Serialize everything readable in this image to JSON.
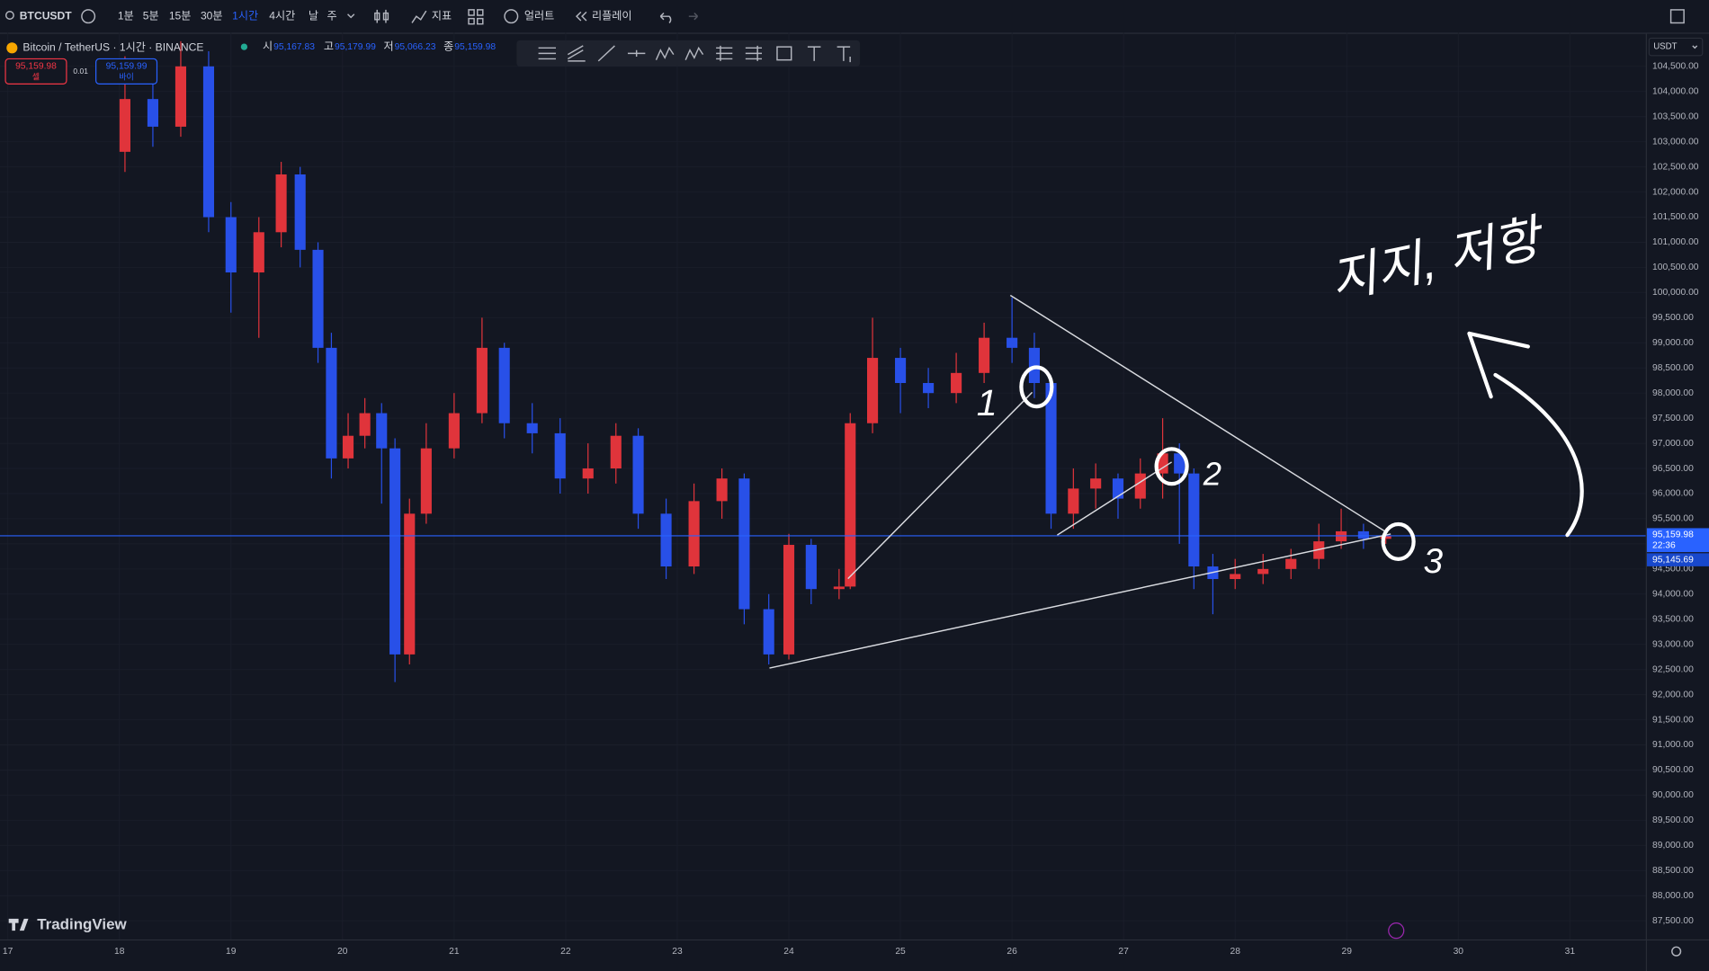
{
  "toolbar": {
    "symbol": "BTCUSDT",
    "intervals": [
      "1분",
      "5분",
      "15분",
      "30분",
      "1시간",
      "4시간",
      "날",
      "주"
    ],
    "indicators": "지표",
    "alert": "얼러트",
    "replay": "리플레이"
  },
  "legend": {
    "title": "Bitcoin / TetherUS · 1시간 · BINANCE",
    "open_label": "시",
    "open": "95,167.83",
    "high_label": "고",
    "high": "95,179.99",
    "low_label": "저",
    "low": "95,066.23",
    "close_label": "종",
    "close": "95,159.98"
  },
  "trade": {
    "sell_price": "95,159.98",
    "sell": "셀",
    "spread": "0.01",
    "buy_price": "95,159.99",
    "buy": "바이"
  },
  "currency": "USDT",
  "brand": "TradingView",
  "price_tags": {
    "countdown": "22:36",
    "second": "95,145.69"
  },
  "annotations": {
    "text": "지지, 저항",
    "mark_1": "1",
    "mark_2": "2",
    "mark_3": "3"
  },
  "chart_data": {
    "type": "candlestick",
    "up_color": "#e0343b",
    "down_color": "#2850e8",
    "last_price": {
      "value": 95159.98,
      "label": "95,159.98"
    },
    "last_price_color": "#2962ff",
    "grid": true,
    "xlim": [
      16.93,
      31.68
    ],
    "xticks": [
      17,
      18,
      19,
      20,
      21,
      22,
      23,
      24,
      25,
      26,
      27,
      28,
      29,
      30,
      31
    ],
    "ylim": [
      87130,
      105170
    ],
    "yticks": [
      {
        "value": 87500,
        "label": "87,500.00"
      },
      {
        "value": 88000,
        "label": "88,000.00"
      },
      {
        "value": 88500,
        "label": "88,500.00"
      },
      {
        "value": 89000,
        "label": "89,000.00"
      },
      {
        "value": 89500,
        "label": "89,500.00"
      },
      {
        "value": 90000,
        "label": "90,000.00"
      },
      {
        "value": 90500,
        "label": "90,500.00"
      },
      {
        "value": 91000,
        "label": "91,000.00"
      },
      {
        "value": 91500,
        "label": "91,500.00"
      },
      {
        "value": 92000,
        "label": "92,000.00"
      },
      {
        "value": 92500,
        "label": "92,500.00"
      },
      {
        "value": 93000,
        "label": "93,000.00"
      },
      {
        "value": 93500,
        "label": "93,500.00"
      },
      {
        "value": 94000,
        "label": "94,000.00"
      },
      {
        "value": 94500,
        "label": "94,500.00"
      },
      {
        "value": 95000,
        "label": "95,000.00"
      },
      {
        "value": 95500,
        "label": "95,500.00"
      },
      {
        "value": 96000,
        "label": "96,000.00"
      },
      {
        "value": 96500,
        "label": "96,500.00"
      },
      {
        "value": 97000,
        "label": "97,000.00"
      },
      {
        "value": 97500,
        "label": "97,500.00"
      },
      {
        "value": 98000,
        "label": "98,000.00"
      },
      {
        "value": 98500,
        "label": "98,500.00"
      },
      {
        "value": 99000,
        "label": "99,000.00"
      },
      {
        "value": 99500,
        "label": "99,500.00"
      },
      {
        "value": 100000,
        "label": "100,000.00"
      },
      {
        "value": 100500,
        "label": "100,500.00"
      },
      {
        "value": 101000,
        "label": "101,000.00"
      },
      {
        "value": 101500,
        "label": "101,500.00"
      },
      {
        "value": 102000,
        "label": "102,000.00"
      },
      {
        "value": 102500,
        "label": "102,500.00"
      },
      {
        "value": 103000,
        "label": "103,000.00"
      },
      {
        "value": 103500,
        "label": "103,500.00"
      },
      {
        "value": 104000,
        "label": "104,000.00"
      },
      {
        "value": 104500,
        "label": "104,500.00"
      }
    ],
    "x": [
      18.05,
      18.3,
      18.55,
      18.8,
      19.0,
      19.25,
      19.45,
      19.62,
      19.78,
      19.9,
      20.05,
      20.2,
      20.35,
      20.47,
      20.6,
      20.75,
      21.0,
      21.25,
      21.45,
      21.7,
      21.95,
      22.2,
      22.45,
      22.65,
      22.9,
      23.15,
      23.4,
      23.6,
      23.82,
      24.0,
      24.2,
      24.45,
      24.55,
      24.75,
      25.0,
      25.25,
      25.5,
      25.75,
      26.0,
      26.2,
      26.35,
      26.55,
      26.75,
      26.95,
      27.15,
      27.35,
      27.5,
      27.63,
      27.8,
      28.0,
      28.25,
      28.5,
      28.75,
      28.95,
      29.15,
      29.35
    ],
    "open": [
      102800,
      103850,
      103300,
      104500,
      101500,
      100400,
      101200,
      102350,
      100850,
      98900,
      96700,
      97150,
      97600,
      96900,
      92800,
      95600,
      96900,
      97600,
      98900,
      97400,
      97200,
      96300,
      96500,
      97150,
      95600,
      94550,
      95850,
      96300,
      93700,
      92800,
      94980,
      94100,
      94150,
      97400,
      98700,
      98200,
      98000,
      98400,
      99100,
      98900,
      98200,
      95600,
      96100,
      96300,
      95900,
      96400,
      96800,
      96400,
      94550,
      94300,
      94400,
      94500,
      94700,
      95050,
      95250,
      95100
    ],
    "high": [
      104700,
      104200,
      105000,
      104800,
      101800,
      101500,
      102600,
      102500,
      101000,
      99200,
      97600,
      97900,
      97800,
      97100,
      95900,
      97400,
      98000,
      99500,
      99000,
      97800,
      97500,
      97000,
      97400,
      97300,
      95900,
      96200,
      96500,
      96400,
      94000,
      95200,
      95100,
      94500,
      97600,
      99500,
      98900,
      98500,
      98800,
      99400,
      99900,
      99200,
      98300,
      96500,
      96600,
      96400,
      96700,
      97500,
      97000,
      96500,
      94800,
      94700,
      94800,
      94900,
      95400,
      95700,
      95400,
      95300
    ],
    "low": [
      102400,
      102900,
      103100,
      101200,
      99600,
      99100,
      100900,
      100500,
      98600,
      96300,
      96500,
      96900,
      95800,
      92250,
      92600,
      95400,
      96700,
      97400,
      97100,
      96800,
      96000,
      96000,
      96200,
      95300,
      94300,
      94400,
      95500,
      93400,
      92600,
      92700,
      93800,
      93900,
      94100,
      97200,
      97600,
      97700,
      97800,
      98200,
      98600,
      97900,
      95300,
      95300,
      95700,
      95500,
      95700,
      95900,
      95000,
      94100,
      93600,
      94100,
      94200,
      94300,
      94500,
      94900,
      94900,
      95000
    ],
    "close": [
      103850,
      103300,
      104500,
      101500,
      100400,
      101200,
      102350,
      100850,
      98900,
      96700,
      97150,
      97600,
      96900,
      92800,
      95600,
      96900,
      97600,
      98900,
      97400,
      97200,
      96300,
      96500,
      97150,
      95600,
      94550,
      95850,
      96300,
      93700,
      92800,
      94980,
      94100,
      94150,
      97400,
      98700,
      98200,
      98000,
      98400,
      99100,
      98900,
      98200,
      95600,
      96100,
      96300,
      95900,
      96400,
      96800,
      96400,
      94550,
      94300,
      94400,
      94500,
      94700,
      95050,
      95250,
      95100,
      95160
    ]
  }
}
